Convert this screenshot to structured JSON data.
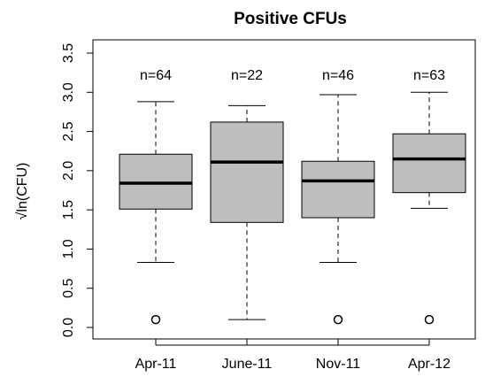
{
  "chart_data": {
    "type": "box",
    "title": "Positive CFUs",
    "y_label": "√ln(CFU)",
    "categories": [
      "Apr-11",
      "June-11",
      "Nov-11",
      "Apr-12"
    ],
    "count_labels": [
      "n=64",
      "n=22",
      "n=46",
      "n=63"
    ],
    "boxes": [
      {
        "whisker_low": 0.83,
        "q1": 1.51,
        "median": 1.84,
        "q3": 2.21,
        "whisker_high": 2.88,
        "outliers": [
          0.1
        ]
      },
      {
        "whisker_low": 0.1,
        "q1": 1.34,
        "median": 2.11,
        "q3": 2.62,
        "whisker_high": 2.83,
        "outliers": []
      },
      {
        "whisker_low": 0.83,
        "q1": 1.4,
        "median": 1.87,
        "q3": 2.12,
        "whisker_high": 2.97,
        "outliers": [
          0.1
        ]
      },
      {
        "whisker_low": 1.52,
        "q1": 1.72,
        "median": 2.15,
        "q3": 2.47,
        "whisker_high": 3.0,
        "outliers": [
          0.1
        ]
      }
    ],
    "color": "#bebebe",
    "ylim": [
      0,
      3.5
    ],
    "yticks": [
      {
        "value": 0,
        "label": "0.0"
      },
      0.5,
      {
        "value": 1,
        "label": "1.0"
      },
      1.5,
      {
        "value": 2,
        "label": "2.0"
      },
      2.5,
      {
        "value": 3,
        "label": "3.0"
      },
      3.5
    ]
  }
}
